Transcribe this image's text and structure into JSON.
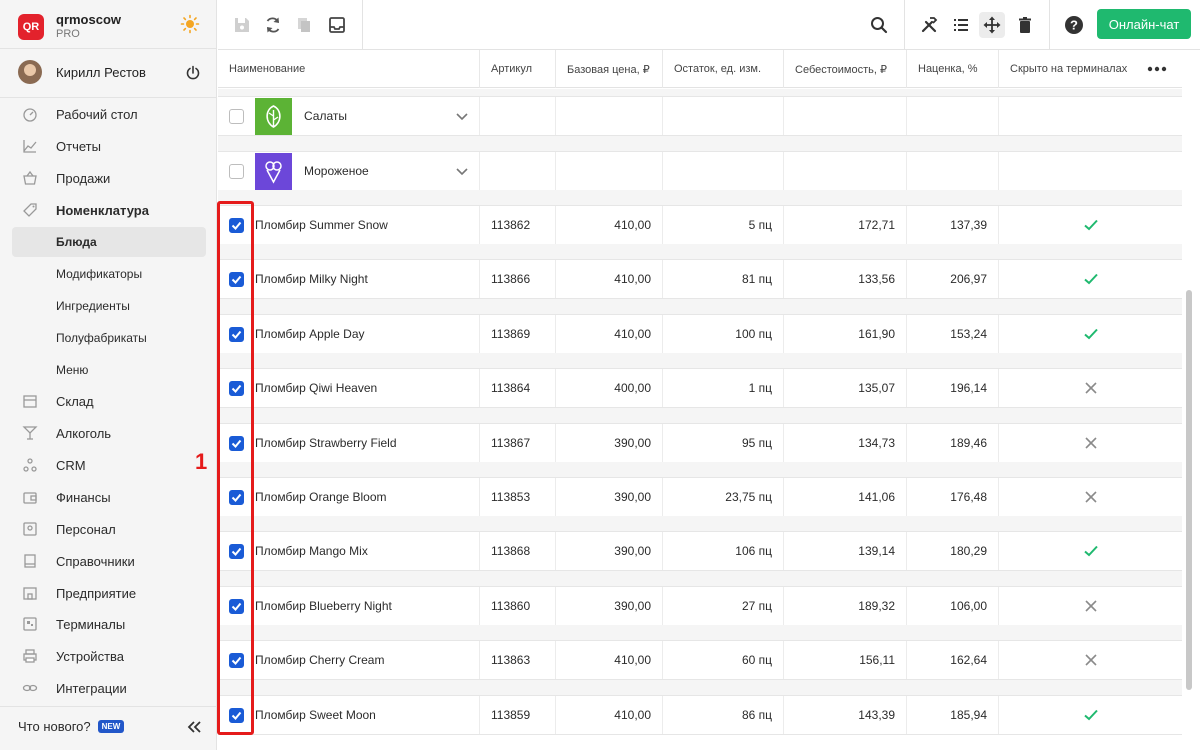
{
  "app": {
    "name": "qrmoscow",
    "plan": "PRO",
    "logo_text": "QR"
  },
  "user": {
    "name": "Кирилл Рестов"
  },
  "sidebar": {
    "items": [
      {
        "label": "Рабочий стол",
        "icon": "dashboard-icon"
      },
      {
        "label": "Отчеты",
        "icon": "chart-icon"
      },
      {
        "label": "Продажи",
        "icon": "basket-icon"
      },
      {
        "label": "Номенклатура",
        "icon": "tag-icon"
      },
      {
        "label": "Блюда"
      },
      {
        "label": "Модификаторы"
      },
      {
        "label": "Ингредиенты"
      },
      {
        "label": "Полуфабрикаты"
      },
      {
        "label": "Меню"
      },
      {
        "label": "Склад",
        "icon": "box-icon"
      },
      {
        "label": "Алкоголь",
        "icon": "glass-icon"
      },
      {
        "label": "CRM",
        "icon": "people-icon"
      },
      {
        "label": "Финансы",
        "icon": "wallet-icon"
      },
      {
        "label": "Персонал",
        "icon": "staff-icon"
      },
      {
        "label": "Справочники",
        "icon": "book-icon"
      },
      {
        "label": "Предприятие",
        "icon": "building-icon"
      },
      {
        "label": "Терминалы",
        "icon": "qr-icon"
      },
      {
        "label": "Устройства",
        "icon": "printer-icon"
      },
      {
        "label": "Интеграции",
        "icon": "link-icon"
      }
    ],
    "whats_new": "Что нового?",
    "new_badge": "NEW"
  },
  "toolbar": {
    "chat_label": "Онлайн-чат"
  },
  "table": {
    "columns": [
      "Наименование",
      "Артикул",
      "Базовая цена, ₽",
      "Остаток, ед. изм.",
      "Себестоимость, ₽",
      "Наценка, %",
      "Скрыто на терминалах"
    ],
    "categories": [
      {
        "name": "Салаты",
        "color": "#5cb335"
      },
      {
        "name": "Мороженое",
        "color": "#6c47d9"
      }
    ],
    "rows": [
      {
        "name": "Пломбир Summer Snow",
        "sku": "113862",
        "price": "410,00",
        "stock": "5 пц",
        "cost": "172,71",
        "markup": "137,39",
        "hidden": true
      },
      {
        "name": "Пломбир Milky Night",
        "sku": "113866",
        "price": "410,00",
        "stock": "81 пц",
        "cost": "133,56",
        "markup": "206,97",
        "hidden": true
      },
      {
        "name": "Пломбир Apple Day",
        "sku": "113869",
        "price": "410,00",
        "stock": "100 пц",
        "cost": "161,90",
        "markup": "153,24",
        "hidden": true
      },
      {
        "name": "Пломбир Qiwi Heaven",
        "sku": "113864",
        "price": "400,00",
        "stock": "1 пц",
        "cost": "135,07",
        "markup": "196,14",
        "hidden": false
      },
      {
        "name": "Пломбир Strawberry Field",
        "sku": "113867",
        "price": "390,00",
        "stock": "95 пц",
        "cost": "134,73",
        "markup": "189,46",
        "hidden": false
      },
      {
        "name": "Пломбир Orange Bloom",
        "sku": "113853",
        "price": "390,00",
        "stock": "23,75 пц",
        "cost": "141,06",
        "markup": "176,48",
        "hidden": false
      },
      {
        "name": "Пломбир Mango Mix",
        "sku": "113868",
        "price": "390,00",
        "stock": "106 пц",
        "cost": "139,14",
        "markup": "180,29",
        "hidden": true
      },
      {
        "name": "Пломбир Blueberry Night",
        "sku": "113860",
        "price": "390,00",
        "stock": "27 пц",
        "cost": "189,32",
        "markup": "106,00",
        "hidden": false
      },
      {
        "name": "Пломбир Cherry Cream",
        "sku": "113863",
        "price": "410,00",
        "stock": "60 пц",
        "cost": "156,11",
        "markup": "162,64",
        "hidden": false
      },
      {
        "name": "Пломбир Sweet Moon",
        "sku": "113859",
        "price": "410,00",
        "stock": "86 пц",
        "cost": "143,39",
        "markup": "185,94",
        "hidden": true
      }
    ]
  },
  "annotation": {
    "number": "1",
    "color": "#e51b1b"
  },
  "colors": {
    "accent": "#1fb96f",
    "checkbox": "#1a5bd6",
    "check_mark": "#1fb96f",
    "cross_mark": "#8a8a8a"
  }
}
